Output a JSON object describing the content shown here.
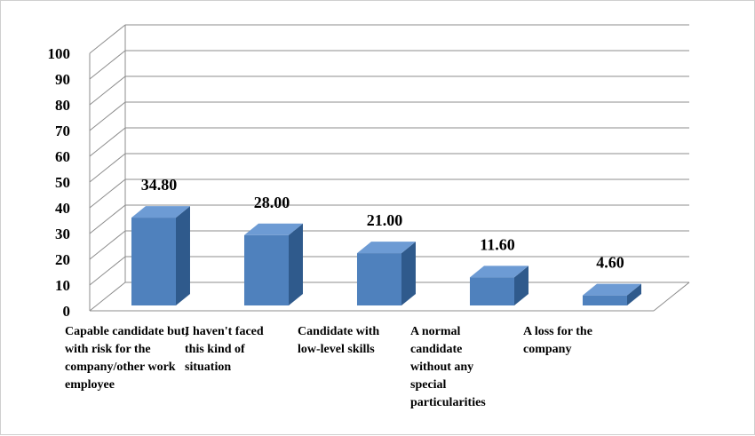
{
  "chart_data": {
    "type": "bar",
    "title": "",
    "xlabel": "",
    "ylabel": "",
    "categories": [
      "Capable candidate but, with risk for the company/other work employee",
      "I haven't faced this kind of situation",
      "Candidate with low-level skills",
      "A normal candidate without any special particularities",
      "A loss for the company"
    ],
    "values": [
      34.8,
      28.0,
      21.0,
      11.6,
      4.6
    ],
    "data_labels": [
      "34.80",
      "28.00",
      "21.00",
      "11.60",
      "4.60"
    ],
    "ylim": [
      0,
      100
    ],
    "yticks": [
      "0",
      "10",
      "20",
      "30",
      "40",
      "50",
      "60",
      "70",
      "80",
      "90",
      "100"
    ],
    "grid": true,
    "legend": "none",
    "style": "3d-column",
    "colors": {
      "bar_front": "#4f81bd",
      "bar_top": "#6d9bd4",
      "bar_side": "#2f5a8c",
      "grid": "#8c8c8c"
    }
  }
}
